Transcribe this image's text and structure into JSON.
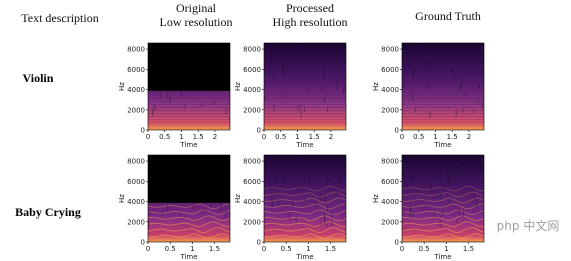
{
  "headers": {
    "text_description": "Text description",
    "original": [
      "Original",
      "Low resolution"
    ],
    "processed": [
      "Processed",
      "High resolution"
    ],
    "ground_truth": "Ground Truth"
  },
  "y_axis": {
    "label": "Hz",
    "ticks": [
      0,
      2000,
      4000,
      6000,
      8000
    ],
    "lim": [
      0,
      8600
    ]
  },
  "x_axis_label": "Time",
  "rows": [
    {
      "label": "Violin",
      "xticks": [
        0,
        0.5,
        1,
        1.5,
        2
      ],
      "xlim": [
        0,
        2.45
      ]
    },
    {
      "label": "Baby Crying",
      "xticks": [
        0,
        0.5,
        1,
        1.5
      ],
      "xlim": [
        0,
        1.85
      ]
    }
  ],
  "watermark": "php 中文网"
}
